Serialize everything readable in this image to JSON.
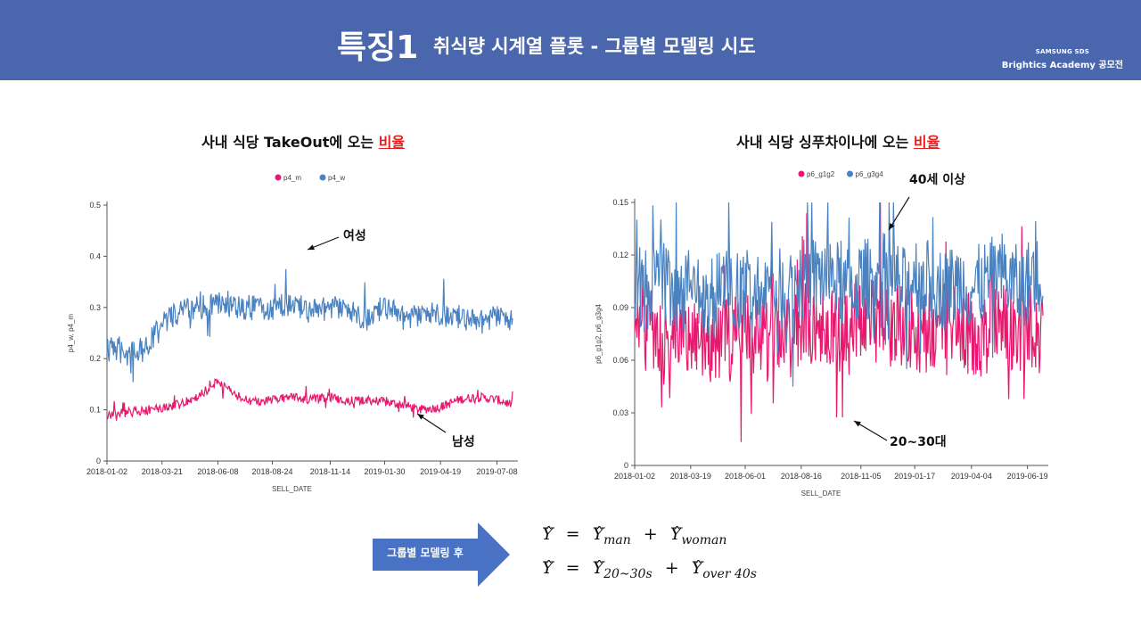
{
  "header": {
    "feature_label": "특징1",
    "title": "취식량 시계열 플롯 - 그룹별 모델링 시도",
    "brand_line1": "SAMSUNG SDS",
    "brand_line2": "Brightics Academy 공모전",
    "bg_color": "#4A67AE"
  },
  "left_panel": {
    "subtitle_prefix": "사내 식당 TakeOut에 오는 ",
    "subtitle_highlight": "비율",
    "annotation_top": "여성",
    "annotation_bottom": "남성"
  },
  "right_panel": {
    "subtitle_prefix": "사내 식당 싱푸차이나에 오는 ",
    "subtitle_highlight": "비율",
    "annotation_top": "40세 이상",
    "annotation_bottom": "20~30대"
  },
  "arrow_label": "그룹별 모델링 후",
  "formulas": [
    {
      "lhs": "Y",
      "terms": [
        {
          "var": "Y",
          "sub": "man"
        },
        {
          "var": "Y",
          "sub": "woman"
        }
      ]
    },
    {
      "lhs": "Y",
      "terms": [
        {
          "var": "Y",
          "sub": "20~30s"
        },
        {
          "var": "Y",
          "sub": "over 40s"
        }
      ]
    }
  ],
  "chart_data": [
    {
      "type": "line",
      "xlabel": "SELL_DATE",
      "ylabel": "p4_w, p4_m",
      "legend_position": "top-center",
      "ylim": [
        0,
        0.5
      ],
      "yticks": [
        0,
        0.1,
        0.2,
        0.3,
        0.4,
        0.5
      ],
      "ytick_labels": [
        "0",
        "0.1",
        "0.2",
        "0.3",
        "0.4",
        "0.5"
      ],
      "xticks": [
        "2018-01-02",
        "2018-03-21",
        "2018-06-08",
        "2018-08-24",
        "2018-11-14",
        "2019-01-30",
        "2019-04-19",
        "2019-07-08"
      ],
      "series": [
        {
          "name": "p4_m",
          "color": "#E8186E",
          "x": [
            "2018-01-02",
            "2018-02-01",
            "2018-03-01",
            "2018-03-21",
            "2018-04-15",
            "2018-05-10",
            "2018-06-08",
            "2018-07-01",
            "2018-07-25",
            "2018-08-24",
            "2018-09-20",
            "2018-10-15",
            "2018-11-14",
            "2018-12-10",
            "2019-01-05",
            "2019-01-30",
            "2019-02-25",
            "2019-03-20",
            "2019-04-19",
            "2019-05-15",
            "2019-06-10",
            "2019-07-08",
            "2019-07-30"
          ],
          "values": [
            0.09,
            0.095,
            0.1,
            0.105,
            0.11,
            0.125,
            0.155,
            0.13,
            0.115,
            0.12,
            0.125,
            0.12,
            0.125,
            0.115,
            0.12,
            0.115,
            0.11,
            0.1,
            0.105,
            0.12,
            0.125,
            0.12,
            0.11
          ]
        },
        {
          "name": "p4_w",
          "color": "#4A82C0",
          "x": [
            "2018-01-02",
            "2018-02-01",
            "2018-03-01",
            "2018-03-21",
            "2018-04-15",
            "2018-05-10",
            "2018-06-08",
            "2018-07-01",
            "2018-07-25",
            "2018-08-24",
            "2018-09-20",
            "2018-10-15",
            "2018-11-14",
            "2018-12-10",
            "2019-01-05",
            "2019-01-30",
            "2019-02-25",
            "2019-03-20",
            "2019-04-19",
            "2019-05-15",
            "2019-06-10",
            "2019-07-08",
            "2019-07-30"
          ],
          "values": [
            0.22,
            0.21,
            0.23,
            0.27,
            0.29,
            0.3,
            0.31,
            0.3,
            0.3,
            0.3,
            0.31,
            0.29,
            0.3,
            0.29,
            0.28,
            0.3,
            0.28,
            0.28,
            0.29,
            0.28,
            0.27,
            0.28,
            0.27
          ]
        }
      ]
    },
    {
      "type": "line",
      "xlabel": "SELL_DATE",
      "ylabel": "p6_g1g2, p6_g3g4",
      "legend_position": "top-center",
      "ylim": [
        0,
        0.15
      ],
      "yticks": [
        0,
        0.03,
        0.06,
        0.09,
        0.12,
        0.15
      ],
      "ytick_labels": [
        "0",
        "0.03",
        "0.06",
        "0.09",
        "0.12",
        "0.15"
      ],
      "xticks": [
        "2018-01-02",
        "2018-03-19",
        "2018-06-01",
        "2018-08-16",
        "2018-11-05",
        "2019-01-17",
        "2019-04-04",
        "2019-06-19"
      ],
      "series": [
        {
          "name": "p6_g1g2",
          "color": "#E8186E",
          "x": [
            "2018-01-02",
            "2018-02-01",
            "2018-03-01",
            "2018-03-19",
            "2018-04-15",
            "2018-05-10",
            "2018-06-01",
            "2018-07-01",
            "2018-07-25",
            "2018-08-16",
            "2018-09-20",
            "2018-10-15",
            "2018-11-05",
            "2018-12-10",
            "2019-01-05",
            "2019-01-17",
            "2019-02-25",
            "2019-03-20",
            "2019-04-04",
            "2019-05-15",
            "2019-06-10",
            "2019-06-19",
            "2019-07-10"
          ],
          "values": [
            0.08,
            0.075,
            0.08,
            0.075,
            0.07,
            0.075,
            0.08,
            0.07,
            0.075,
            0.08,
            0.08,
            0.075,
            0.085,
            0.08,
            0.08,
            0.075,
            0.08,
            0.08,
            0.07,
            0.08,
            0.075,
            0.08,
            0.075
          ]
        },
        {
          "name": "p6_g3g4",
          "color": "#4A82C0",
          "x": [
            "2018-01-02",
            "2018-02-01",
            "2018-03-01",
            "2018-03-19",
            "2018-04-15",
            "2018-05-10",
            "2018-06-01",
            "2018-07-01",
            "2018-07-25",
            "2018-08-16",
            "2018-09-20",
            "2018-10-15",
            "2018-11-05",
            "2018-12-10",
            "2019-01-05",
            "2019-01-17",
            "2019-02-25",
            "2019-03-20",
            "2019-04-04",
            "2019-05-15",
            "2019-06-10",
            "2019-06-19",
            "2019-07-10"
          ],
          "values": [
            0.1,
            0.105,
            0.1,
            0.1,
            0.095,
            0.1,
            0.095,
            0.1,
            0.1,
            0.105,
            0.11,
            0.1,
            0.105,
            0.11,
            0.1,
            0.11,
            0.1,
            0.105,
            0.1,
            0.11,
            0.1,
            0.105,
            0.11
          ]
        }
      ]
    }
  ]
}
